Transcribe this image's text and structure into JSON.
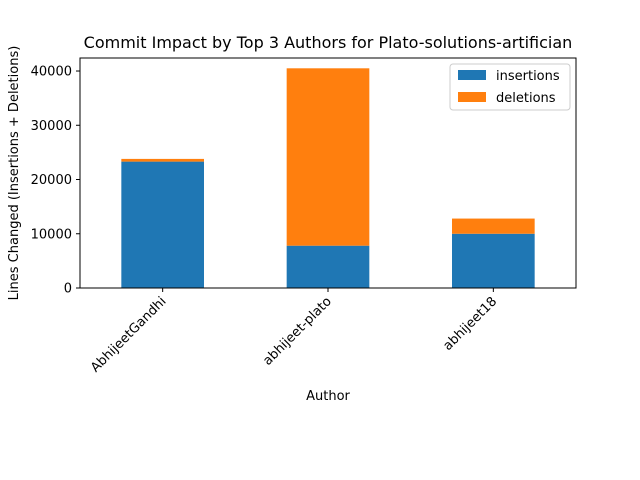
{
  "chart_data": {
    "type": "bar",
    "stacked": true,
    "title": "Commit Impact by Top 3 Authors for Plato-solutions-artifician",
    "xlabel": "Author",
    "ylabel": "Lines Changed (Insertions + Deletions)",
    "categories": [
      "AbhijeetGandhi",
      "abhijeet-plato",
      "abhijeet18"
    ],
    "series": [
      {
        "name": "insertions",
        "values": [
          23300,
          7800,
          10000
        ],
        "color": "#1f77b4"
      },
      {
        "name": "deletions",
        "values": [
          500,
          32700,
          2800
        ],
        "color": "#ff7f0e"
      }
    ],
    "ylim": [
      0,
      42400
    ],
    "yticks": [
      0,
      10000,
      20000,
      30000,
      40000
    ],
    "ytick_labels": [
      "0",
      "10000",
      "20000",
      "30000",
      "40000"
    ],
    "grid": false,
    "legend_position": "top-right"
  }
}
